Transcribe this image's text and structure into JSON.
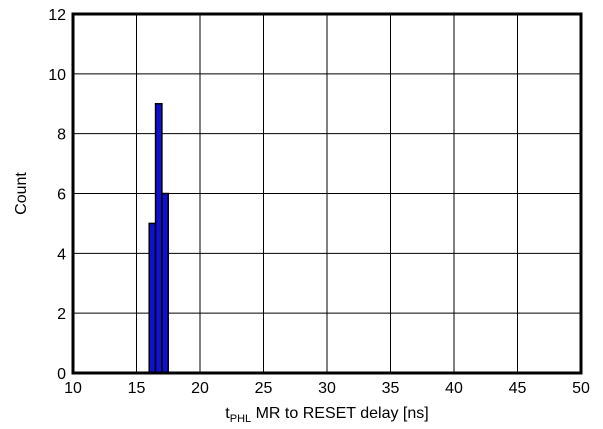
{
  "chart_data": {
    "type": "bar",
    "title": "",
    "xlabel_main": "t",
    "xlabel_sub": "PHL",
    "xlabel_rest": " MR to RESET delay [ns]",
    "ylabel": "Count",
    "xlim": [
      10,
      50
    ],
    "ylim": [
      0,
      12
    ],
    "xticks": [
      "10",
      "15",
      "20",
      "25",
      "30",
      "35",
      "40",
      "45",
      "50"
    ],
    "yticks": [
      "0",
      "2",
      "4",
      "6",
      "8",
      "10",
      "12"
    ],
    "grid": true,
    "bar_color": "#1010d0",
    "bin_width": 0.5,
    "bins": [
      {
        "x": 16.0,
        "count": 5
      },
      {
        "x": 16.5,
        "count": 9
      },
      {
        "x": 17.0,
        "count": 6
      }
    ]
  }
}
